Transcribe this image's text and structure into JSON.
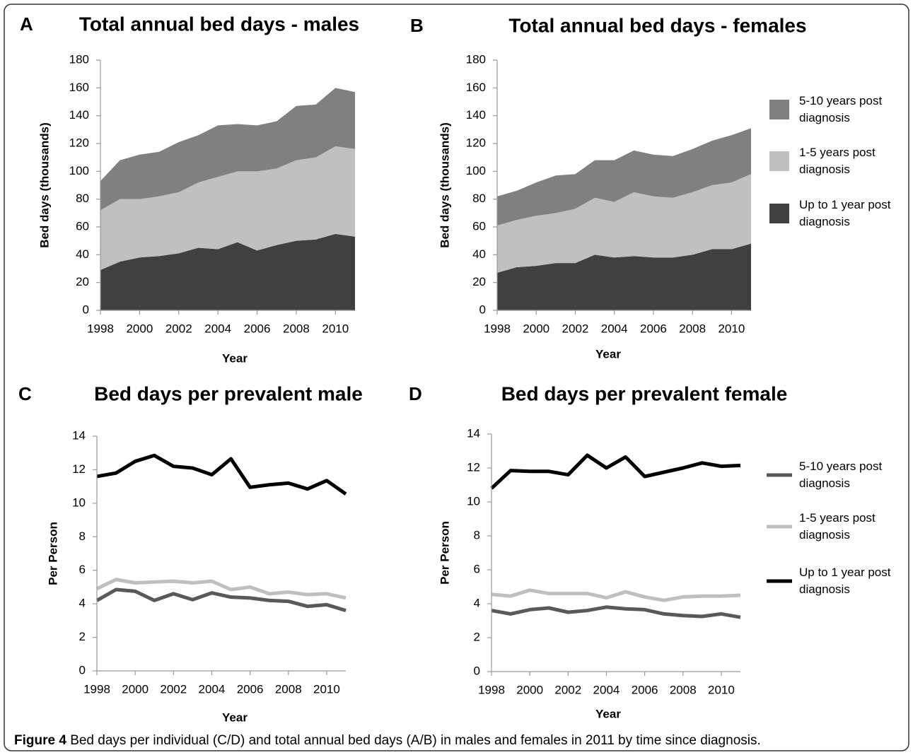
{
  "chart_data": [
    {
      "type": "area",
      "panel": "A",
      "title": "Total annual bed days - males",
      "x_label": "Year",
      "y_label": "Bed days (thousands)",
      "x": [
        1998,
        1999,
        2000,
        2001,
        2002,
        2003,
        2004,
        2005,
        2006,
        2007,
        2008,
        2009,
        2010,
        2011
      ],
      "xlim": [
        1998,
        2011
      ],
      "xticks": [
        1998,
        2000,
        2002,
        2004,
        2006,
        2008,
        2010
      ],
      "ylim": [
        0,
        180
      ],
      "yticks": [
        0,
        20,
        40,
        60,
        80,
        100,
        120,
        140,
        160,
        180
      ],
      "stacked": true,
      "legend": "none",
      "series": [
        {
          "name": "Up to 1 year post diagnosis",
          "color": "#404040",
          "values": [
            29,
            35,
            38,
            39,
            41,
            45,
            44,
            49,
            43,
            47,
            50,
            51,
            55,
            53
          ]
        },
        {
          "name": "1-5 years post diagnosis",
          "color": "#c0c0c0",
          "values": [
            43,
            45,
            42,
            43,
            44,
            47,
            52,
            51,
            57,
            55,
            58,
            59,
            63,
            63
          ]
        },
        {
          "name": "5-10 years post diagnosis",
          "color": "#808080",
          "values": [
            21,
            28,
            32,
            32,
            36,
            34,
            37,
            34,
            33,
            34,
            39,
            38,
            42,
            41
          ]
        }
      ]
    },
    {
      "type": "area",
      "panel": "B",
      "title": "Total annual bed days - females",
      "x_label": "Year",
      "y_label": "Bed days (thousands)",
      "x": [
        1998,
        1999,
        2000,
        2001,
        2002,
        2003,
        2004,
        2005,
        2006,
        2007,
        2008,
        2009,
        2010,
        2011
      ],
      "xlim": [
        1998,
        2011
      ],
      "xticks": [
        1998,
        2000,
        2002,
        2004,
        2006,
        2008,
        2010
      ],
      "ylim": [
        0,
        180
      ],
      "yticks": [
        0,
        20,
        40,
        60,
        80,
        100,
        120,
        140,
        160,
        180
      ],
      "stacked": true,
      "legend": "right",
      "series": [
        {
          "name": "Up to 1 year post diagnosis",
          "color": "#404040",
          "values": [
            27,
            31,
            32,
            34,
            34,
            40,
            38,
            39,
            38,
            38,
            40,
            44,
            44,
            48
          ]
        },
        {
          "name": "1-5 years post diagnosis",
          "color": "#c0c0c0",
          "values": [
            34,
            34,
            36,
            36,
            39,
            41,
            40,
            46,
            44,
            43,
            45,
            46,
            48,
            50
          ]
        },
        {
          "name": "5-10 years post diagnosis",
          "color": "#808080",
          "values": [
            21,
            21,
            24,
            27,
            25,
            27,
            30,
            30,
            30,
            30,
            31,
            32,
            34,
            33
          ]
        }
      ]
    },
    {
      "type": "line",
      "panel": "C",
      "title": "Bed days per prevalent male",
      "x_label": "Year",
      "y_label": "Per Person",
      "x": [
        1998,
        1999,
        2000,
        2001,
        2002,
        2003,
        2004,
        2005,
        2006,
        2007,
        2008,
        2009,
        2010,
        2011
      ],
      "xlim": [
        1998,
        2011
      ],
      "xticks": [
        1998,
        2000,
        2002,
        2004,
        2006,
        2008,
        2010
      ],
      "ylim": [
        0,
        14
      ],
      "yticks": [
        0,
        2,
        4,
        6,
        8,
        10,
        12,
        14
      ],
      "legend": "none",
      "series": [
        {
          "name": "Up to 1 year post diagnosis",
          "color": "#000000",
          "values": [
            11.6,
            11.8,
            12.5,
            12.85,
            12.2,
            12.1,
            11.7,
            12.65,
            10.95,
            11.1,
            11.2,
            10.85,
            11.35,
            10.55
          ]
        },
        {
          "name": "1-5 years post diagnosis",
          "color": "#bfbfbf",
          "values": [
            4.9,
            5.45,
            5.25,
            5.3,
            5.35,
            5.25,
            5.35,
            4.85,
            5.0,
            4.6,
            4.7,
            4.55,
            4.6,
            4.35
          ]
        },
        {
          "name": "5-10 years post diagnosis",
          "color": "#595959",
          "values": [
            4.2,
            4.85,
            4.75,
            4.2,
            4.6,
            4.25,
            4.65,
            4.4,
            4.35,
            4.2,
            4.15,
            3.85,
            3.95,
            3.6
          ]
        }
      ]
    },
    {
      "type": "line",
      "panel": "D",
      "title": "Bed days per prevalent female",
      "x_label": "Year",
      "y_label": "Per Person",
      "x": [
        1998,
        1999,
        2000,
        2001,
        2002,
        2003,
        2004,
        2005,
        2006,
        2007,
        2008,
        2009,
        2010,
        2011
      ],
      "xlim": [
        1998,
        2011
      ],
      "xticks": [
        1998,
        2000,
        2002,
        2004,
        2006,
        2008,
        2010
      ],
      "ylim": [
        0,
        14
      ],
      "yticks": [
        0,
        2,
        4,
        6,
        8,
        10,
        12,
        14
      ],
      "legend": "right",
      "series": [
        {
          "name": "Up to 1 year post diagnosis",
          "color": "#000000",
          "values": [
            10.8,
            11.85,
            11.8,
            11.8,
            11.6,
            12.75,
            12.0,
            12.65,
            11.5,
            11.75,
            12.0,
            12.3,
            12.1,
            12.15
          ]
        },
        {
          "name": "1-5 years post diagnosis",
          "color": "#bfbfbf",
          "values": [
            4.55,
            4.45,
            4.8,
            4.6,
            4.6,
            4.6,
            4.35,
            4.7,
            4.4,
            4.2,
            4.4,
            4.45,
            4.45,
            4.5
          ]
        },
        {
          "name": "5-10 years post diagnosis",
          "color": "#595959",
          "values": [
            3.6,
            3.4,
            3.65,
            3.75,
            3.5,
            3.6,
            3.8,
            3.7,
            3.65,
            3.4,
            3.3,
            3.25,
            3.4,
            3.2
          ]
        }
      ]
    }
  ],
  "caption": {
    "label": "Figure 4",
    "text": "Bed days per individual (C/D) and total annual bed days (A/B) in males and females in 2011 by time since diagnosis."
  }
}
